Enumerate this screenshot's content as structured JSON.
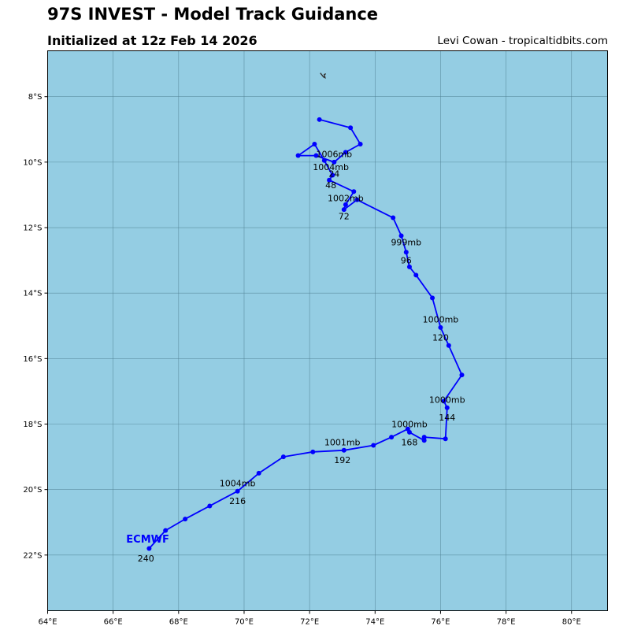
{
  "header": {
    "title": "97S INVEST - Model Track Guidance",
    "subtitle": "Initialized at 12z Feb 14 2026",
    "credit": "Levi Cowan - tropicaltidbits.com"
  },
  "colors": {
    "ocean": "#94cde3",
    "track": "#0000ff",
    "grid": "#4f7f92",
    "model_label": "#0000ff"
  },
  "chart_data": {
    "type": "line",
    "title": "97S INVEST - Model Track Guidance",
    "xlabel": "",
    "ylabel": "",
    "xlim": [
      64.0,
      81.1
    ],
    "ylim": [
      -23.7,
      -6.6
    ],
    "grid": true,
    "x_ticks": [
      64,
      66,
      68,
      70,
      72,
      74,
      76,
      78,
      80
    ],
    "x_tick_labels": [
      "64°E",
      "66°E",
      "68°E",
      "70°E",
      "72°E",
      "74°E",
      "76°E",
      "78°E",
      "80°E"
    ],
    "y_ticks": [
      -8,
      -10,
      -12,
      -14,
      -16,
      -18,
      -20,
      -22
    ],
    "y_tick_labels": [
      "8°S",
      "10°S",
      "12°S",
      "14°S",
      "16°S",
      "18°S",
      "20°S",
      "22°S"
    ],
    "series": [
      {
        "name": "ECMWF",
        "label_position": [
          66.4,
          -21.5
        ],
        "points": [
          [
            72.3,
            -8.7
          ],
          [
            73.25,
            -8.95
          ],
          [
            73.55,
            -9.45
          ],
          [
            73.1,
            -9.7
          ],
          [
            72.75,
            -10.0
          ],
          [
            72.2,
            -9.8
          ],
          [
            71.65,
            -9.8
          ],
          [
            72.15,
            -9.45
          ],
          [
            72.45,
            -9.95
          ],
          [
            72.7,
            -10.4
          ],
          [
            72.6,
            -10.55
          ],
          [
            73.35,
            -10.9
          ],
          [
            73.1,
            -11.3
          ],
          [
            73.05,
            -11.45
          ],
          [
            73.45,
            -11.15
          ],
          [
            74.55,
            -11.7
          ],
          [
            74.8,
            -12.25
          ],
          [
            74.95,
            -12.75
          ],
          [
            75.05,
            -13.2
          ],
          [
            75.25,
            -13.45
          ],
          [
            75.75,
            -14.15
          ],
          [
            76.0,
            -15.05
          ],
          [
            76.25,
            -15.6
          ],
          [
            76.65,
            -16.5
          ],
          [
            76.1,
            -17.3
          ],
          [
            76.2,
            -17.5
          ],
          [
            76.15,
            -18.45
          ],
          [
            75.5,
            -18.4
          ],
          [
            75.5,
            -18.5
          ],
          [
            75.05,
            -18.25
          ],
          [
            75.0,
            -18.15
          ],
          [
            74.5,
            -18.4
          ],
          [
            73.95,
            -18.65
          ],
          [
            73.05,
            -18.8
          ],
          [
            72.1,
            -18.85
          ],
          [
            71.2,
            -19.0
          ],
          [
            70.45,
            -19.5
          ],
          [
            69.8,
            -20.05
          ],
          [
            68.95,
            -20.5
          ],
          [
            68.2,
            -20.9
          ],
          [
            67.6,
            -21.25
          ],
          [
            67.1,
            -21.8
          ]
        ]
      }
    ],
    "annotations": [
      {
        "text": "1006mb",
        "x": 72.75,
        "y": -9.75
      },
      {
        "text": "1004mb",
        "x": 72.65,
        "y": -10.15
      },
      {
        "text": "24",
        "x": 72.75,
        "y": -10.35
      },
      {
        "text": "48",
        "x": 72.65,
        "y": -10.7
      },
      {
        "text": "1002mb",
        "x": 73.1,
        "y": -11.1
      },
      {
        "text": "72",
        "x": 73.05,
        "y": -11.65
      },
      {
        "text": "999mb",
        "x": 74.95,
        "y": -12.45
      },
      {
        "text": "96",
        "x": 74.95,
        "y": -13.0
      },
      {
        "text": "1000mb",
        "x": 76.0,
        "y": -14.8
      },
      {
        "text": "120",
        "x": 76.0,
        "y": -15.35
      },
      {
        "text": "1000mb",
        "x": 76.2,
        "y": -17.25
      },
      {
        "text": "144",
        "x": 76.2,
        "y": -17.8
      },
      {
        "text": "1000mb",
        "x": 75.05,
        "y": -18.0
      },
      {
        "text": "168",
        "x": 75.05,
        "y": -18.55
      },
      {
        "text": "1001mb",
        "x": 73.0,
        "y": -18.55
      },
      {
        "text": "192",
        "x": 73.0,
        "y": -19.1
      },
      {
        "text": "1004mb",
        "x": 69.8,
        "y": -19.8
      },
      {
        "text": "216",
        "x": 69.8,
        "y": -20.35
      },
      {
        "text": "240",
        "x": 67.0,
        "y": -22.1
      }
    ],
    "islands": [
      {
        "name": "island",
        "x": 72.4,
        "y": -7.35
      }
    ]
  }
}
